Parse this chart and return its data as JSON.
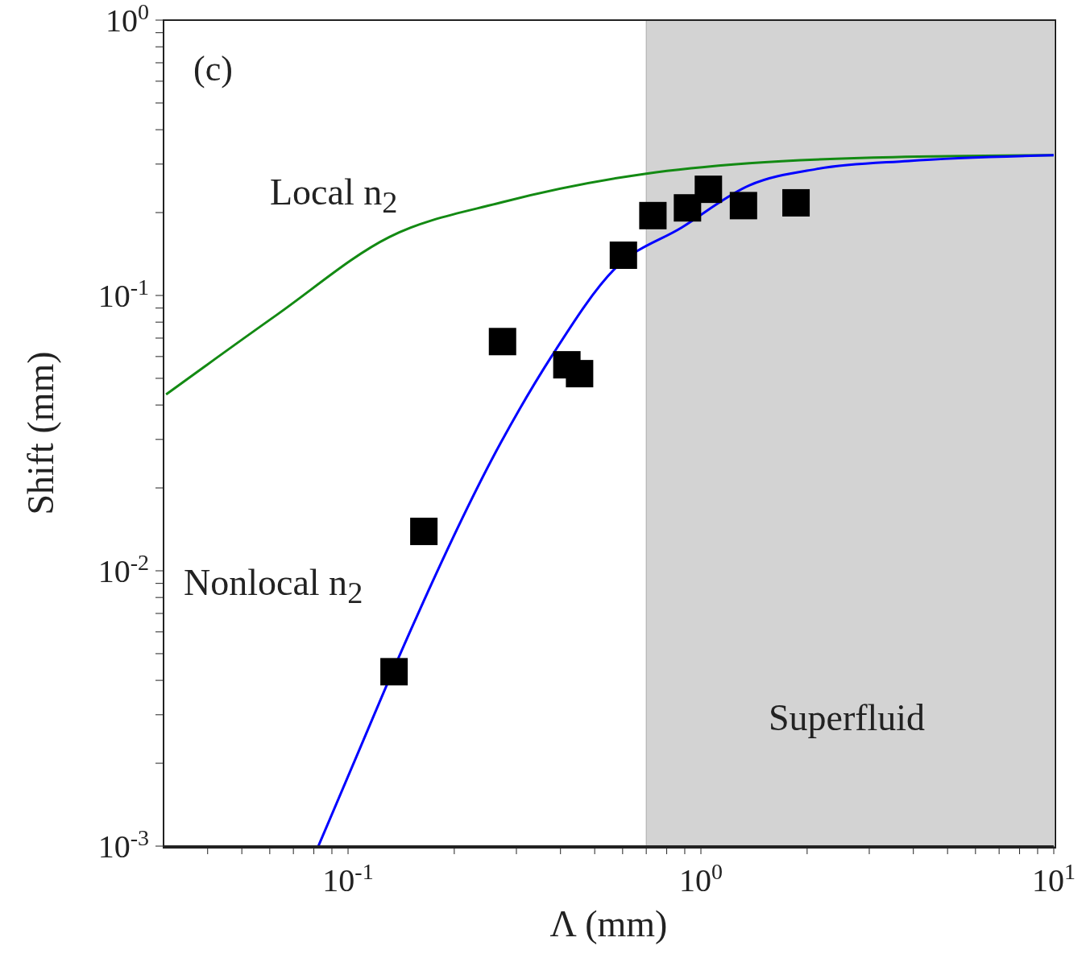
{
  "chart_data": {
    "type": "scatter",
    "xlabel": "Λ (mm)",
    "ylabel": "Shift (mm)",
    "annotations": [
      "(c)"
    ],
    "log": "xy",
    "xlim": [
      0.03,
      10
    ],
    "ylim": [
      0.001,
      1
    ],
    "xticks": [
      {
        "value": 0.04,
        "label": null
      },
      {
        "value": 0.05,
        "label": null
      },
      {
        "value": 0.06,
        "label": null
      },
      {
        "value": 0.07,
        "label": null
      },
      {
        "value": 0.08,
        "label": null
      },
      {
        "value": 0.09,
        "label": null
      },
      {
        "value": 0.1,
        "label": "10$^{-1}$"
      },
      {
        "value": 0.2,
        "label": null
      },
      {
        "value": 0.3,
        "label": null
      },
      {
        "value": 0.4,
        "label": null
      },
      {
        "value": 0.5,
        "label": null
      },
      {
        "value": 0.6,
        "label": null
      },
      {
        "value": 0.7,
        "label": null
      },
      {
        "value": 0.8,
        "label": null
      },
      {
        "value": 0.9,
        "label": null
      },
      {
        "value": 1,
        "label": "10$^{0}$"
      },
      {
        "value": 2,
        "label": null
      },
      {
        "value": 3,
        "label": null
      },
      {
        "value": 4,
        "label": null
      },
      {
        "value": 5,
        "label": null
      },
      {
        "value": 6,
        "label": null
      },
      {
        "value": 7,
        "label": null
      },
      {
        "value": 8,
        "label": null
      },
      {
        "value": 9,
        "label": null
      },
      {
        "value": 10,
        "label": "10$^{1}$"
      }
    ],
    "yticks": [
      {
        "value": 0.001,
        "label": "10$^{-3}$"
      },
      {
        "value": 0.002,
        "label": null
      },
      {
        "value": 0.003,
        "label": null
      },
      {
        "value": 0.004,
        "label": null
      },
      {
        "value": 0.005,
        "label": null
      },
      {
        "value": 0.006,
        "label": null
      },
      {
        "value": 0.007,
        "label": null
      },
      {
        "value": 0.008,
        "label": null
      },
      {
        "value": 0.009,
        "label": null
      },
      {
        "value": 0.01,
        "label": "10$^{-2}$"
      },
      {
        "value": 0.02,
        "label": null
      },
      {
        "value": 0.03,
        "label": null
      },
      {
        "value": 0.04,
        "label": null
      },
      {
        "value": 0.05,
        "label": null
      },
      {
        "value": 0.06,
        "label": null
      },
      {
        "value": 0.07,
        "label": null
      },
      {
        "value": 0.08,
        "label": null
      },
      {
        "value": 0.09,
        "label": null
      },
      {
        "value": 0.1,
        "label": "10$^{-1}$"
      },
      {
        "value": 0.2,
        "label": null
      },
      {
        "value": 0.3,
        "label": null
      },
      {
        "value": 0.4,
        "label": null
      },
      {
        "value": 0.5,
        "label": null
      },
      {
        "value": 0.6,
        "label": null
      },
      {
        "value": 0.7,
        "label": null
      },
      {
        "value": 0.8,
        "label": null
      },
      {
        "value": 0.9,
        "label": null
      },
      {
        "value": 1,
        "label": "10$^{0}$"
      }
    ],
    "bands": [
      {
        "axis": "x",
        "from": 0.7,
        "to": 10,
        "label": "Superfluid",
        "color": "#d3d3d3"
      }
    ],
    "series": [
      {
        "color": "#000000",
        "marker": "square",
        "x": [
          0.135,
          0.164,
          0.274,
          0.417,
          0.453,
          0.603,
          0.731,
          0.916,
          1.05,
          1.32,
          1.86
        ],
        "values": [
          0.0043,
          0.0139,
          0.068,
          0.056,
          0.052,
          0.14,
          0.195,
          0.208,
          0.243,
          0.212,
          0.217
        ]
      },
      {
        "type": "line",
        "name": "Local n$_{2}$",
        "color": "#138a13",
        "x": [
          0.0305,
          0.0628,
          0.131,
          0.273,
          0.7,
          1.37,
          3.5,
          10
        ],
        "values": [
          0.0437,
          0.085,
          0.163,
          0.218,
          0.277,
          0.302,
          0.318,
          0.323
        ]
      },
      {
        "type": "line",
        "name": "Nonlocal n$_{2}$",
        "color": "#0000ff",
        "x": [
          0.0824,
          0.108,
          0.139,
          0.271,
          0.377,
          0.57,
          0.885,
          1.37,
          2.13,
          3.88,
          10
        ],
        "values": [
          0.001,
          0.00226,
          0.00483,
          0.0292,
          0.06,
          0.125,
          0.177,
          0.251,
          0.288,
          0.308,
          0.323
        ]
      }
    ]
  }
}
